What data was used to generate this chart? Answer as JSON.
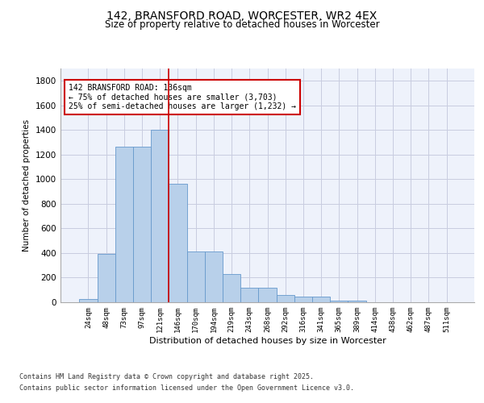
{
  "title": "142, BRANSFORD ROAD, WORCESTER, WR2 4EX",
  "subtitle": "Size of property relative to detached houses in Worcester",
  "xlabel": "Distribution of detached houses by size in Worcester",
  "ylabel": "Number of detached properties",
  "categories": [
    "24sqm",
    "48sqm",
    "73sqm",
    "97sqm",
    "121sqm",
    "146sqm",
    "170sqm",
    "194sqm",
    "219sqm",
    "243sqm",
    "268sqm",
    "292sqm",
    "316sqm",
    "341sqm",
    "365sqm",
    "389sqm",
    "414sqm",
    "438sqm",
    "462sqm",
    "487sqm",
    "511sqm"
  ],
  "values": [
    25,
    395,
    1265,
    1265,
    1400,
    960,
    415,
    415,
    230,
    120,
    120,
    60,
    45,
    45,
    10,
    10,
    0,
    0,
    0,
    0,
    0
  ],
  "bar_color": "#b8d0ea",
  "bar_edge_color": "#6699cc",
  "background_color": "#eef2fb",
  "grid_color": "#c8cce0",
  "vline_color": "#cc0000",
  "vline_pos": 4.5,
  "annotation_text": "142 BRANSFORD ROAD: 136sqm\n← 75% of detached houses are smaller (3,703)\n25% of semi-detached houses are larger (1,232) →",
  "annotation_box_color": "#cc0000",
  "ylim": [
    0,
    1900
  ],
  "yticks": [
    0,
    200,
    400,
    600,
    800,
    1000,
    1200,
    1400,
    1600,
    1800
  ],
  "footer_line1": "Contains HM Land Registry data © Crown copyright and database right 2025.",
  "footer_line2": "Contains public sector information licensed under the Open Government Licence v3.0."
}
